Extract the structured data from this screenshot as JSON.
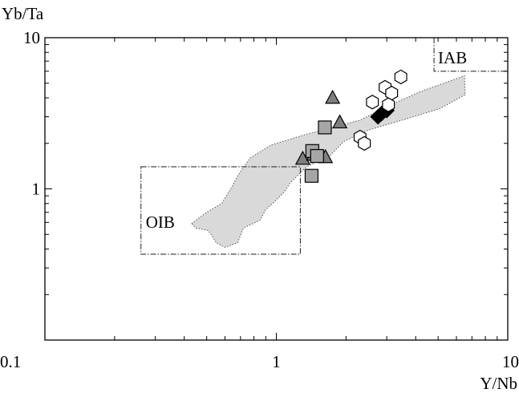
{
  "chart_data": {
    "type": "scatter",
    "xlabel": "Y/Nb",
    "ylabel": "Yb/Ta",
    "xscale": "log",
    "yscale": "log",
    "xlim": [
      0.1,
      10
    ],
    "ylim": [
      0.1,
      10
    ],
    "x_ticks": [
      "0.1",
      "1",
      "10"
    ],
    "y_ticks": [
      "1",
      "10"
    ],
    "grid": false,
    "legend": "none",
    "fields": [
      {
        "label": "OIB",
        "type": "rectangle",
        "style": "dash-dot",
        "x": [
          0.26,
          1.27
        ],
        "y": [
          0.37,
          1.4
        ]
      },
      {
        "label": "IAB",
        "type": "open-rectangle",
        "style": "dash-dot",
        "x": [
          4.8,
          10
        ],
        "y": [
          6,
          10
        ]
      }
    ],
    "shaded_field": {
      "fill": "#d9d9d9",
      "style": "dotted",
      "points": [
        [
          0.43,
          0.59
        ],
        [
          0.5,
          0.7
        ],
        [
          0.58,
          0.8
        ],
        [
          0.64,
          1.02
        ],
        [
          0.68,
          1.22
        ],
        [
          0.77,
          1.6
        ],
        [
          0.95,
          1.95
        ],
        [
          1.35,
          2.3
        ],
        [
          1.75,
          2.55
        ],
        [
          2.3,
          2.85
        ],
        [
          3.0,
          3.5
        ],
        [
          4.2,
          4.4
        ],
        [
          5.3,
          5.0
        ],
        [
          6.5,
          5.6
        ],
        [
          6.55,
          4.2
        ],
        [
          5.1,
          3.4
        ],
        [
          3.5,
          2.85
        ],
        [
          2.5,
          2.45
        ],
        [
          1.95,
          2.05
        ],
        [
          1.7,
          1.65
        ],
        [
          1.35,
          1.4
        ],
        [
          1.15,
          1.1
        ],
        [
          1.08,
          0.95
        ],
        [
          0.98,
          0.82
        ],
        [
          0.9,
          0.73
        ],
        [
          0.85,
          0.62
        ],
        [
          0.72,
          0.55
        ],
        [
          0.68,
          0.44
        ],
        [
          0.6,
          0.41
        ],
        [
          0.55,
          0.44
        ],
        [
          0.51,
          0.53
        ],
        [
          0.45,
          0.55
        ],
        [
          0.43,
          0.59
        ]
      ]
    },
    "series": [
      {
        "marker": "triangle",
        "fill": "#7f7f7f",
        "points": [
          {
            "x": 1.75,
            "y": 4.0
          },
          {
            "x": 1.88,
            "y": 2.75
          },
          {
            "x": 1.3,
            "y": 1.58
          },
          {
            "x": 1.45,
            "y": 1.68
          },
          {
            "x": 1.63,
            "y": 1.62
          }
        ]
      },
      {
        "marker": "square",
        "fill": "#a6a6a6",
        "points": [
          {
            "x": 1.62,
            "y": 2.55
          },
          {
            "x": 1.43,
            "y": 1.78
          },
          {
            "x": 1.5,
            "y": 1.65
          },
          {
            "x": 1.42,
            "y": 1.22
          }
        ]
      },
      {
        "marker": "diamond",
        "fill": "#000000",
        "points": [
          {
            "x": 2.85,
            "y": 3.15
          },
          {
            "x": 3.0,
            "y": 3.3
          },
          {
            "x": 2.75,
            "y": 3.0
          }
        ]
      },
      {
        "marker": "hexagon",
        "fill": "#ffffff",
        "points": [
          {
            "x": 3.45,
            "y": 5.5
          },
          {
            "x": 2.95,
            "y": 4.7
          },
          {
            "x": 3.15,
            "y": 4.3
          },
          {
            "x": 2.6,
            "y": 3.75
          },
          {
            "x": 3.05,
            "y": 3.6
          },
          {
            "x": 2.3,
            "y": 2.2
          },
          {
            "x": 2.4,
            "y": 2.0
          }
        ]
      }
    ]
  }
}
